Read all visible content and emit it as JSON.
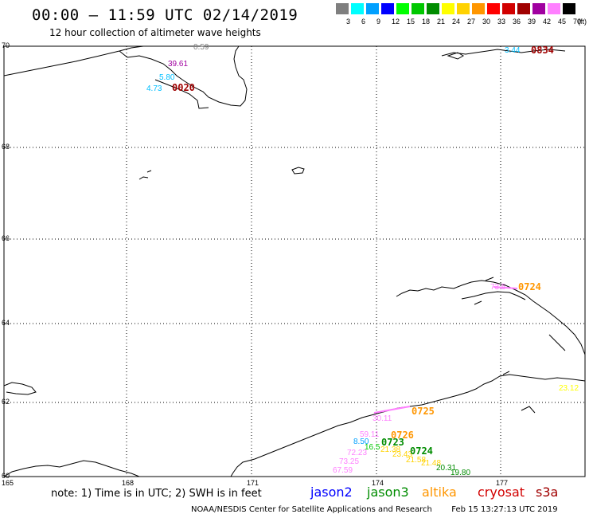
{
  "header": {
    "title": "00:00 – 11:59 UTC 02/14/2019",
    "subtitle": "12 hour collection of altimeter wave heights"
  },
  "color_scale": {
    "unit": "(ft)",
    "bins": [
      {
        "label": "3",
        "color": "#7f7f7f"
      },
      {
        "label": "6",
        "color": "#00ffff"
      },
      {
        "label": "9",
        "color": "#00a0ff"
      },
      {
        "label": "12",
        "color": "#0000ff"
      },
      {
        "label": "15",
        "color": "#00ff00"
      },
      {
        "label": "18",
        "color": "#00c800"
      },
      {
        "label": "21",
        "color": "#008c00"
      },
      {
        "label": "24",
        "color": "#ffff00"
      },
      {
        "label": "27",
        "color": "#ffd200"
      },
      {
        "label": "30",
        "color": "#ff9600"
      },
      {
        "label": "33",
        "color": "#ff0000"
      },
      {
        "label": "36",
        "color": "#d20000"
      },
      {
        "label": "39",
        "color": "#a00000"
      },
      {
        "label": "42",
        "color": "#a000a0"
      },
      {
        "label": "45",
        "color": "#ff80ff"
      },
      {
        "label": "70",
        "color": "#000000"
      }
    ]
  },
  "axes": {
    "lat_labels": [
      "70",
      "68",
      "66",
      "64",
      "62",
      "60"
    ],
    "lon_labels": [
      "165",
      "168",
      "171",
      "174",
      "177"
    ]
  },
  "observations": [
    {
      "text": "0.59",
      "color": "#7f7f7f"
    },
    {
      "text": "39.61",
      "color": "#a000a0"
    },
    {
      "text": "5.80",
      "color": "#00bfff"
    },
    {
      "text": "4.73",
      "color": "#00bfff"
    },
    {
      "text": "3.44",
      "color": "#00bfff"
    },
    {
      "text": "73.5",
      "color": "#ff80ff"
    },
    {
      "text": "30.11",
      "color": "#ff80ff"
    },
    {
      "text": "59.11",
      "color": "#ff80ff"
    },
    {
      "text": "8.50",
      "color": "#00a0ff"
    },
    {
      "text": "16.5",
      "color": "#00c800"
    },
    {
      "text": "21.38",
      "color": "#ffd200"
    },
    {
      "text": "72.23",
      "color": "#ff80ff"
    },
    {
      "text": "23.43",
      "color": "#ffd200"
    },
    {
      "text": "73.25",
      "color": "#ff80ff"
    },
    {
      "text": "21.58",
      "color": "#ffd200"
    },
    {
      "text": "21.48",
      "color": "#ffd200"
    },
    {
      "text": "67.59",
      "color": "#ff80ff"
    },
    {
      "text": "20.31",
      "color": "#008c00"
    },
    {
      "text": "19.80",
      "color": "#008c00"
    },
    {
      "text": "23.12",
      "color": "#ffff00"
    }
  ],
  "pass_times": [
    {
      "text": "0020",
      "color": "#a00000"
    },
    {
      "text": "0834",
      "color": "#a00000"
    },
    {
      "text": "0724",
      "color": "#ff9600"
    },
    {
      "text": "0725",
      "color": "#ff9600"
    },
    {
      "text": "0726",
      "color": "#ff9600"
    },
    {
      "text": "0723",
      "color": "#008c00"
    },
    {
      "text": "0724",
      "color": "#008c00"
    }
  ],
  "footer": {
    "note": "note: 1) Time is in UTC; 2) SWH is in feet",
    "satellites": [
      {
        "name": "jason2",
        "color": "#0000ff"
      },
      {
        "name": "jason3",
        "color": "#008c00"
      },
      {
        "name": "altika",
        "color": "#ff9600"
      },
      {
        "name": "cryosat",
        "color": "#d20000"
      },
      {
        "name": "s3a",
        "color": "#a00000"
      }
    ],
    "credit": "NOAA/NESDIS Center for Satellite Applications and Research",
    "generated": "Feb 15 13:27:13 UTC 2019"
  }
}
